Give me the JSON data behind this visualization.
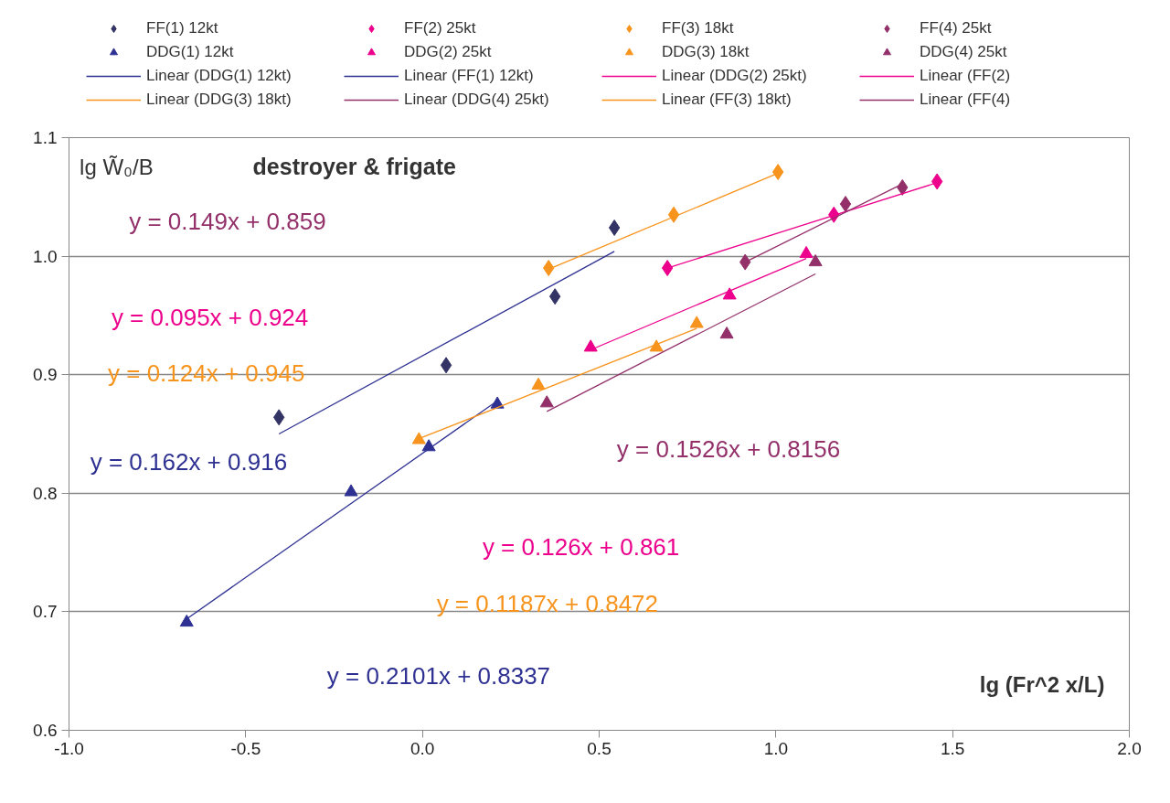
{
  "chart_data": {
    "type": "scatter",
    "title": "destroyer & frigate",
    "xlabel": "lg (Fr^2 x/L)",
    "ylabel": "lg W̃₀/B",
    "xlim": [
      -1.0,
      2.0
    ],
    "ylim": [
      0.6,
      1.1
    ],
    "xticks": [
      {
        "value": -1.0,
        "label": "-1.0"
      },
      {
        "value": -0.5,
        "label": "-0.5"
      },
      {
        "value": 0.0,
        "label": "0.0"
      },
      {
        "value": 0.5,
        "label": "0.5"
      },
      {
        "value": 1.0,
        "label": "1.0"
      },
      {
        "value": 1.5,
        "label": "1.5"
      },
      {
        "value": 2.0,
        "label": "2.0"
      }
    ],
    "yticks": [
      {
        "value": 0.6,
        "label": "0.6"
      },
      {
        "value": 0.7,
        "label": "0.7"
      },
      {
        "value": 0.8,
        "label": "0.8"
      },
      {
        "value": 0.9,
        "label": "0.9"
      },
      {
        "value": 1.0,
        "label": "1.0"
      },
      {
        "value": 1.1,
        "label": "1.1"
      }
    ],
    "grid": "y",
    "legend": "top",
    "annotations": [
      "y = 0.149x + 0.859",
      "y = 0.095x + 0.924",
      "y = 0.124x + 0.945",
      "y = 0.162x + 0.916",
      "y = 0.1526x + 0.8156",
      "y = 0.126x + 0.861",
      "y = 0.1187x + 0.8472",
      "y = 0.2101x + 0.8337"
    ],
    "series": [
      {
        "name": "FF(1) 12kt",
        "marker": "diamond",
        "color": "#333366",
        "x": [
          -0.406,
          0.067,
          0.375,
          0.543
        ],
        "values": [
          0.864,
          0.908,
          0.966,
          1.024
        ]
      },
      {
        "name": "FF(2) 25kt",
        "marker": "diamond",
        "color": "#ec008c",
        "x": [
          0.693,
          1.164,
          1.456
        ],
        "values": [
          0.99,
          1.035,
          1.063
        ]
      },
      {
        "name": "FF(3) 18kt",
        "marker": "diamond",
        "color": "#f7941d",
        "x": [
          0.357,
          0.711,
          1.006
        ],
        "values": [
          0.99,
          1.035,
          1.071
        ]
      },
      {
        "name": "FF(4) 25kt",
        "marker": "diamond",
        "color": "#93306a",
        "x": [
          0.913,
          1.197,
          1.358
        ],
        "values": [
          0.995,
          1.044,
          1.058
        ]
      },
      {
        "name": "DDG(1) 12kt",
        "marker": "triangle",
        "color": "#2e3192",
        "x": [
          -0.667,
          -0.202,
          0.018,
          0.212
        ],
        "values": [
          0.691,
          0.801,
          0.839,
          0.875
        ]
      },
      {
        "name": "DDG(2) 25kt",
        "marker": "triangle",
        "color": "#ec008c",
        "x": [
          0.476,
          0.869,
          1.086
        ],
        "values": [
          0.923,
          0.967,
          1.002
        ]
      },
      {
        "name": "DDG(3) 18kt",
        "marker": "triangle",
        "color": "#f7941d",
        "x": [
          -0.01,
          0.328,
          0.662,
          0.776
        ],
        "values": [
          0.845,
          0.891,
          0.923,
          0.943
        ]
      },
      {
        "name": "DDG(4) 25kt",
        "marker": "triangle",
        "color": "#93306a",
        "x": [
          0.352,
          0.861,
          1.112
        ],
        "values": [
          0.876,
          0.934,
          0.995
        ]
      },
      {
        "name": "Linear (DDG(1) 12kt)",
        "type": "line",
        "color": "#2e3192",
        "x": [
          -0.667,
          0.212
        ],
        "values": [
          0.694,
          0.878
        ]
      },
      {
        "name": "Linear (FF(1) 12kt)",
        "type": "line",
        "color": "#2e3192",
        "x": [
          -0.406,
          0.543
        ],
        "values": [
          0.85,
          1.004
        ]
      },
      {
        "name": "Linear (DDG(2) 25kt)",
        "type": "line",
        "color": "#ec008c",
        "x": [
          0.476,
          1.086
        ],
        "values": [
          0.921,
          0.998
        ]
      },
      {
        "name": "Linear (FF(2)",
        "type": "line",
        "color": "#ec008c",
        "x": [
          0.693,
          1.456
        ],
        "values": [
          0.99,
          1.062
        ]
      },
      {
        "name": "Linear (DDG(3) 18kt)",
        "type": "line",
        "color": "#f7941d",
        "x": [
          -0.01,
          0.776
        ],
        "values": [
          0.846,
          0.939
        ]
      },
      {
        "name": "Linear (DDG(4) 25kt)",
        "type": "line",
        "color": "#93306a",
        "x": [
          0.352,
          1.112
        ],
        "values": [
          0.869,
          0.985
        ]
      },
      {
        "name": "Linear (FF(3) 18kt)",
        "type": "line",
        "color": "#f7941d",
        "x": [
          0.357,
          1.006
        ],
        "values": [
          0.989,
          1.07
        ]
      },
      {
        "name": "Linear (FF(4)",
        "type": "line",
        "color": "#93306a",
        "x": [
          0.913,
          1.358
        ],
        "values": [
          0.995,
          1.061
        ]
      }
    ]
  }
}
